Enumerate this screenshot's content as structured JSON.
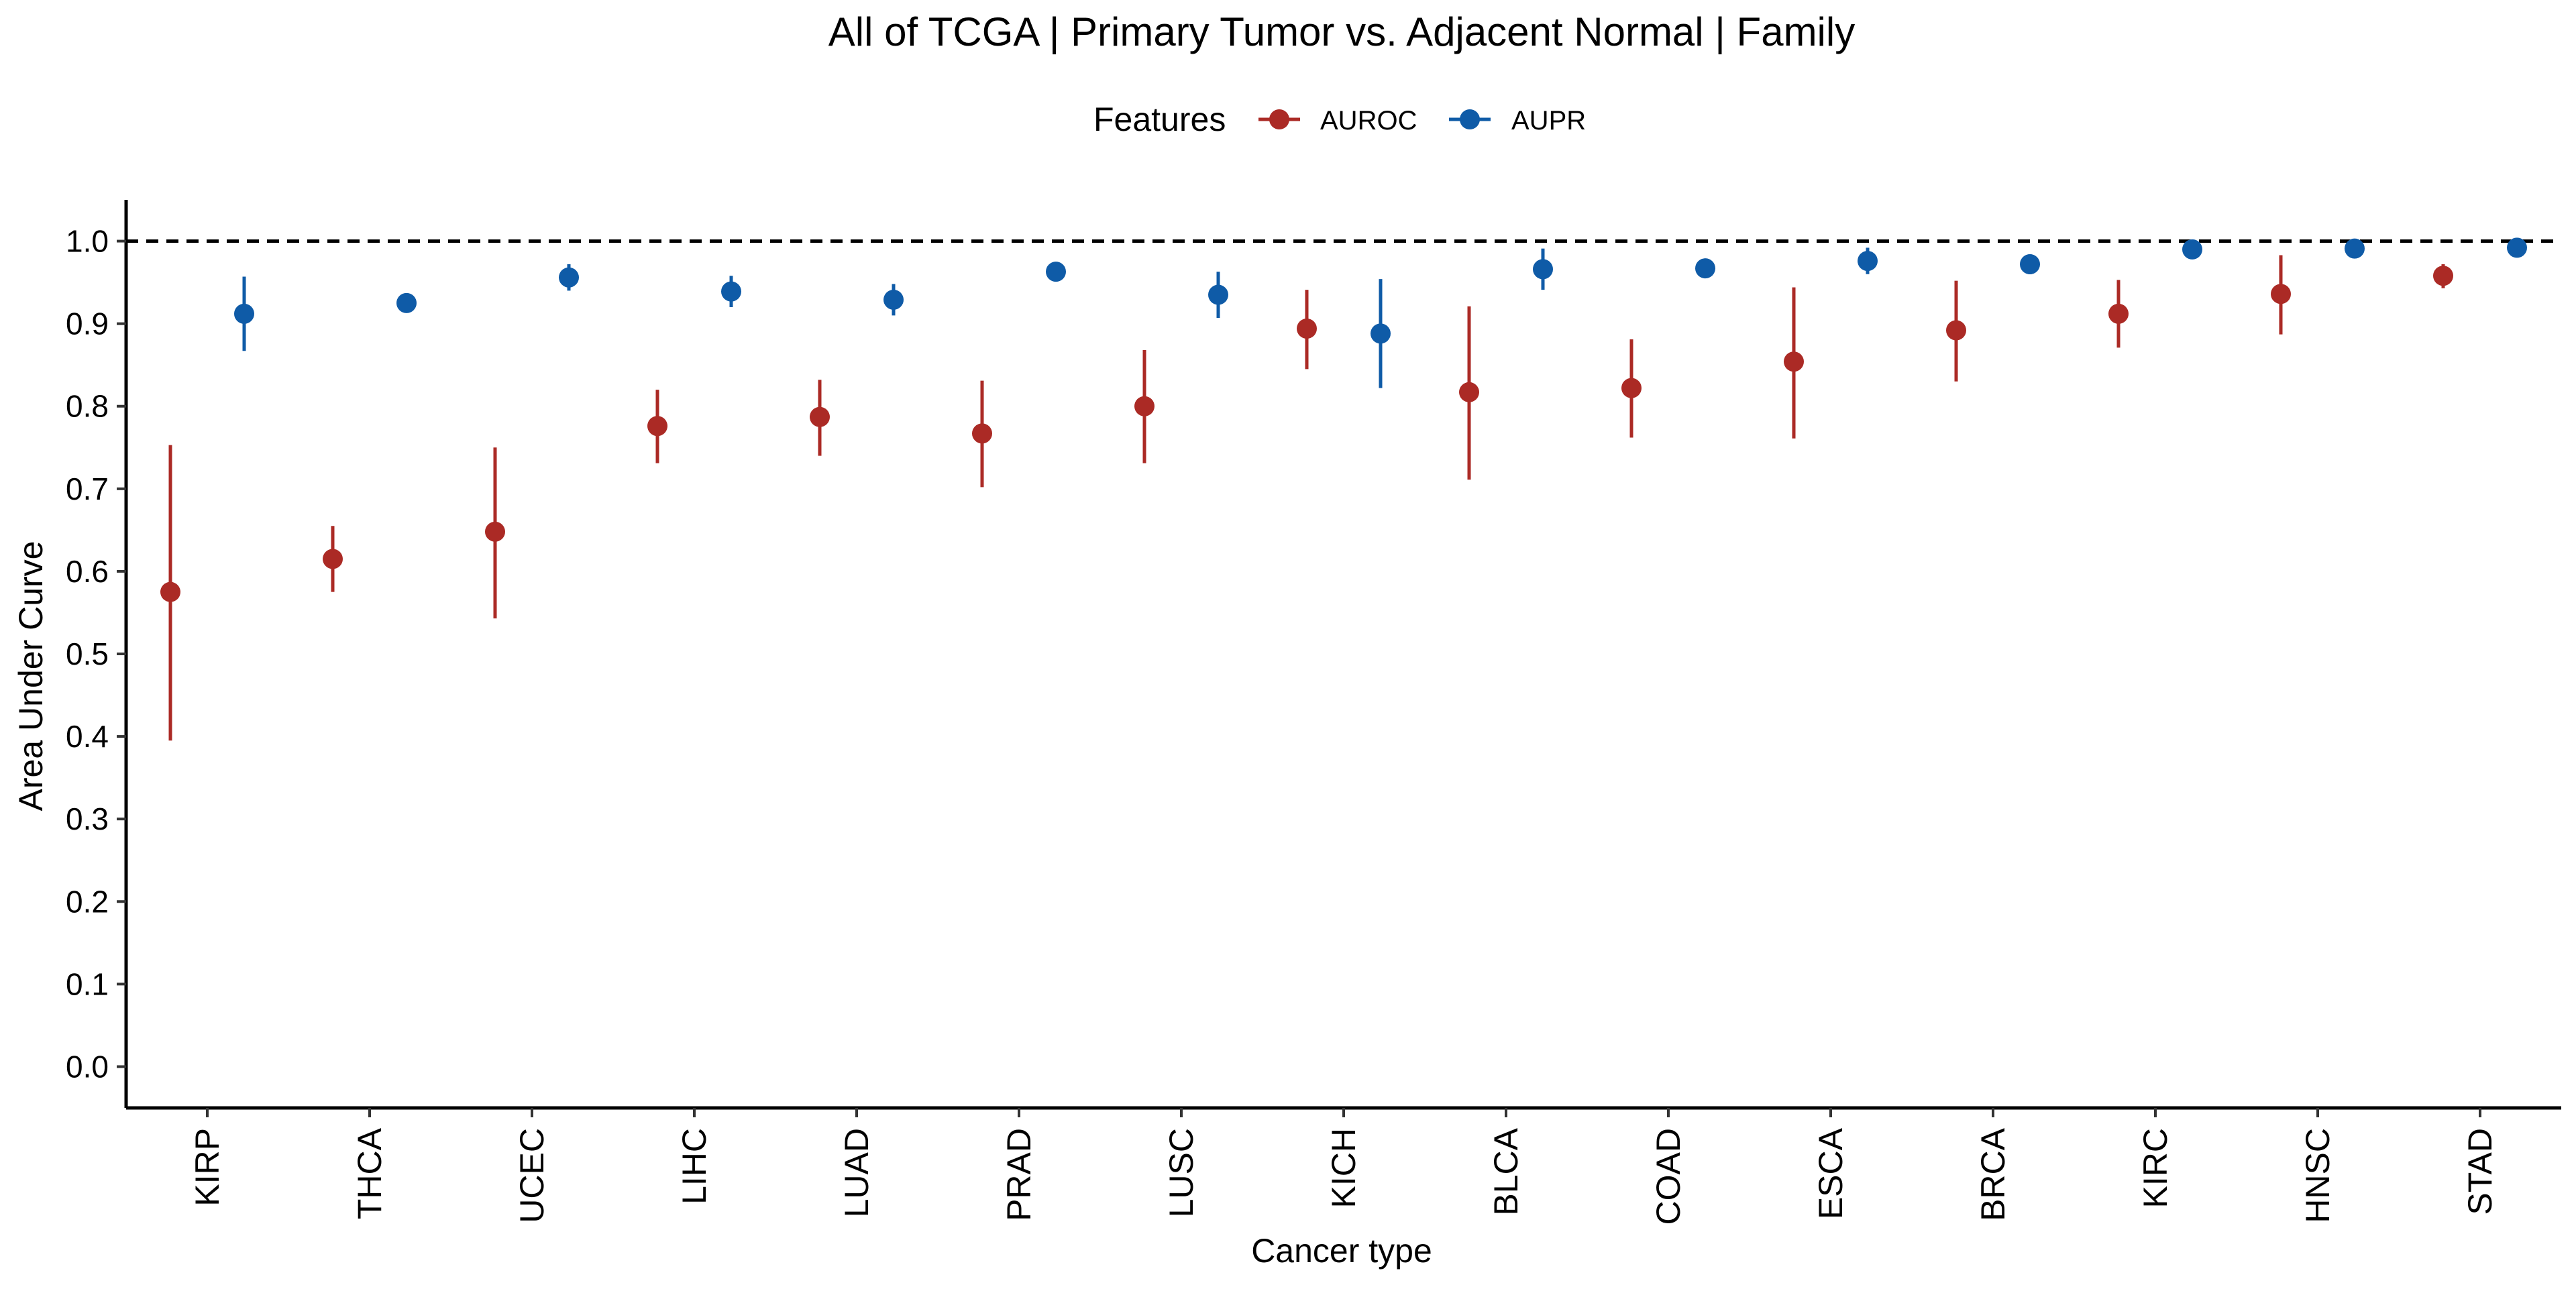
{
  "chart_data": {
    "type": "scatter",
    "title": "All of TCGA | Primary Tumor vs. Adjacent Normal | Family",
    "xlabel": "Cancer type",
    "ylabel": "Area Under Curve",
    "ylim": [
      -0.05,
      1.05
    ],
    "yticks": [
      "0.0",
      "0.1",
      "0.2",
      "0.3",
      "0.4",
      "0.5",
      "0.6",
      "0.7",
      "0.8",
      "0.9",
      "1.0"
    ],
    "reference_line": {
      "y": 1.0,
      "style": "dashed"
    },
    "legend": {
      "title": "Features",
      "position": "top"
    },
    "categories": [
      "KIRP",
      "THCA",
      "UCEC",
      "LIHC",
      "LUAD",
      "PRAD",
      "LUSC",
      "KICH",
      "BLCA",
      "COAD",
      "ESCA",
      "BRCA",
      "KIRC",
      "HNSC",
      "STAD"
    ],
    "series": [
      {
        "name": "AUROC",
        "color": "#AB2A25",
        "values": [
          0.575,
          0.615,
          0.648,
          0.776,
          0.787,
          0.767,
          0.8,
          0.894,
          0.817,
          0.822,
          0.854,
          0.892,
          0.912,
          0.936,
          0.958
        ],
        "lower": [
          0.395,
          0.575,
          0.543,
          0.731,
          0.74,
          0.702,
          0.731,
          0.845,
          0.711,
          0.762,
          0.761,
          0.83,
          0.871,
          0.887,
          0.943
        ],
        "upper": [
          0.753,
          0.655,
          0.75,
          0.82,
          0.832,
          0.831,
          0.868,
          0.941,
          0.921,
          0.881,
          0.944,
          0.952,
          0.953,
          0.983,
          0.972
        ]
      },
      {
        "name": "AUPR",
        "color": "#0F5BA7",
        "values": [
          0.912,
          0.925,
          0.956,
          0.939,
          0.929,
          0.963,
          0.935,
          0.888,
          0.966,
          0.967,
          0.976,
          0.972,
          0.99,
          0.991,
          0.992
        ],
        "lower": [
          0.867,
          0.92,
          0.94,
          0.92,
          0.91,
          0.952,
          0.907,
          0.822,
          0.941,
          0.962,
          0.96,
          0.96,
          0.984,
          0.986,
          0.988
        ],
        "upper": [
          0.957,
          0.93,
          0.972,
          0.958,
          0.948,
          0.974,
          0.963,
          0.954,
          0.991,
          0.972,
          0.992,
          0.984,
          0.996,
          0.996,
          0.996
        ]
      }
    ]
  }
}
